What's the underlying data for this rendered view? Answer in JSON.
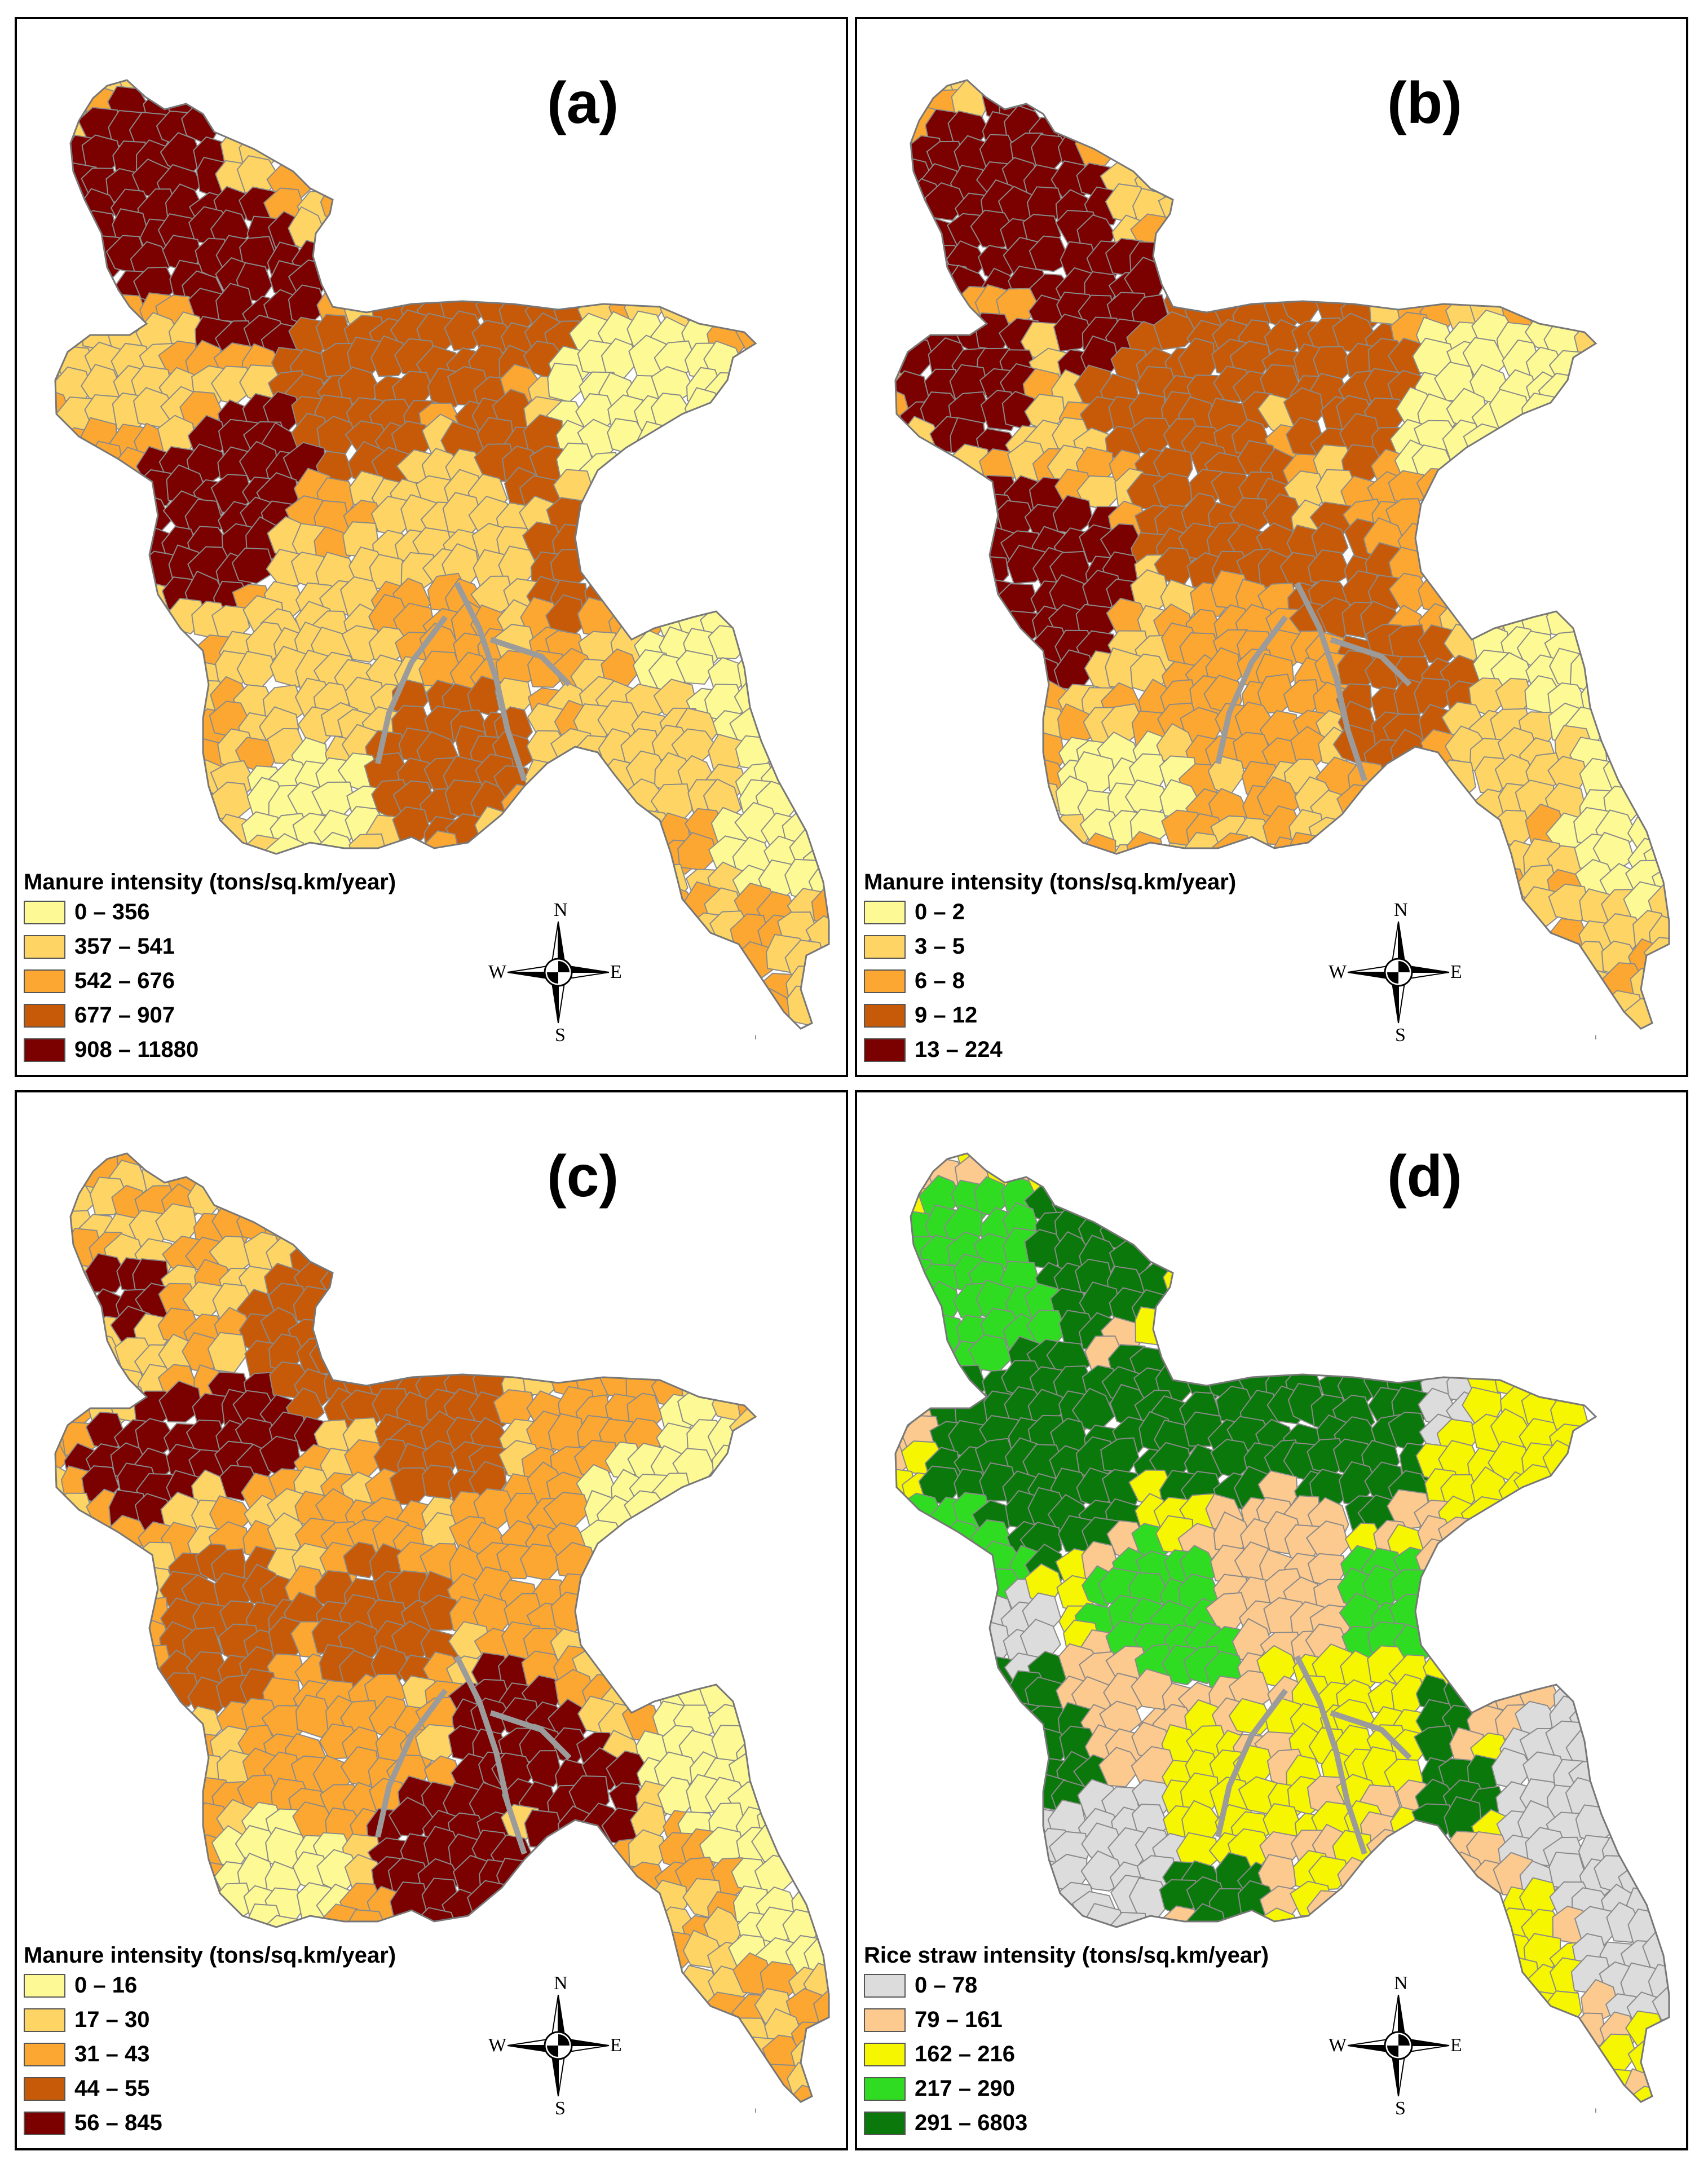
{
  "panels": [
    {
      "label": "(a)",
      "legend_title": "Manure intensity (tons/sq.km/year)",
      "classes": [
        {
          "range": "0 – 356",
          "color": "#fdfa96"
        },
        {
          "range": "357 – 541",
          "color": "#fed564"
        },
        {
          "range": "542 – 676",
          "color": "#fca731"
        },
        {
          "range": "677 – 907",
          "color": "#c65a08"
        },
        {
          "range": "908 – 11880",
          "color": "#7b0000"
        }
      ]
    },
    {
      "label": "(b)",
      "legend_title": "Manure intensity (tons/sq.km/year)",
      "classes": [
        {
          "range": "0 – 2",
          "color": "#fdfa96"
        },
        {
          "range": "3 – 5",
          "color": "#fed564"
        },
        {
          "range": "6 – 8",
          "color": "#fca731"
        },
        {
          "range": "9 – 12",
          "color": "#c65a08"
        },
        {
          "range": "13 – 224",
          "color": "#7b0000"
        }
      ]
    },
    {
      "label": "(c)",
      "legend_title": "Manure intensity (tons/sq.km/year)",
      "classes": [
        {
          "range": "0 – 16",
          "color": "#fdfa96"
        },
        {
          "range": "17 – 30",
          "color": "#fed564"
        },
        {
          "range": "31 – 43",
          "color": "#fca731"
        },
        {
          "range": "44 – 55",
          "color": "#c65a08"
        },
        {
          "range": "56 – 845",
          "color": "#7b0000"
        }
      ]
    },
    {
      "label": "(d)",
      "legend_title": "Rice straw intensity (tons/sq.km/year)",
      "classes": [
        {
          "range": "0 – 78",
          "color": "#dcdcdc"
        },
        {
          "range": "79 – 161",
          "color": "#fcc98e"
        },
        {
          "range": "162 – 216",
          "color": "#f6f600"
        },
        {
          "range": "217 – 290",
          "color": "#2fdc22"
        },
        {
          "range": "291 – 6803",
          "color": "#0a780a"
        }
      ]
    }
  ],
  "compass": {
    "n": "N",
    "s": "S",
    "e": "E",
    "w": "W"
  }
}
